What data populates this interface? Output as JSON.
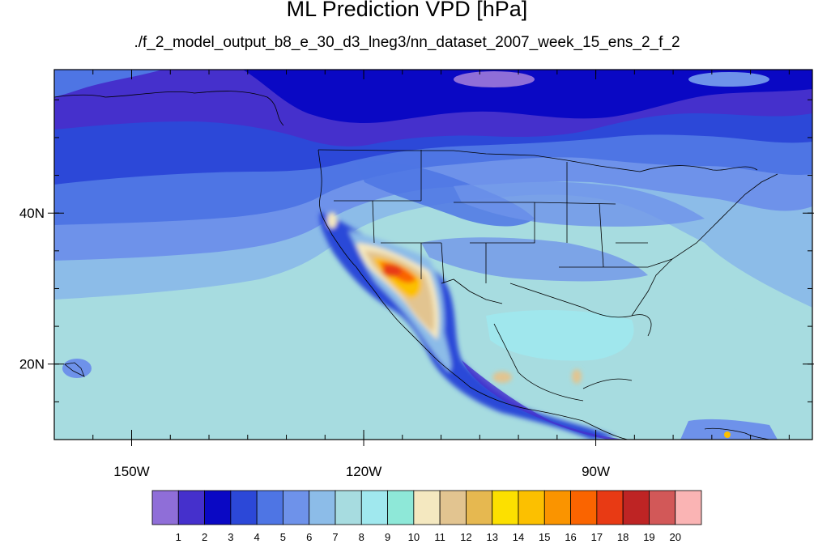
{
  "title": "ML Prediction VPD [hPa]",
  "subtitle": "./f_2_model_output_b8_e_30_d3_lneg3/nn_dataset_2007_week_15_ens_2_f_2",
  "map": {
    "lon_range": [
      -160,
      -62
    ],
    "lat_range": [
      10,
      59
    ],
    "lat_ticks": [
      {
        "value": 40,
        "label": "40N"
      },
      {
        "value": 20,
        "label": "20N"
      }
    ],
    "lon_ticks": [
      {
        "value": -150,
        "label": "150W"
      },
      {
        "value": -120,
        "label": "120W"
      },
      {
        "value": -90,
        "label": "90W"
      }
    ],
    "background_level_color": "#a7dce0"
  },
  "colorbar": {
    "colors": [
      "#8f6ed8",
      "#4530cc",
      "#0a08c4",
      "#2c48d8",
      "#4e75e4",
      "#6e92ea",
      "#8cbce8",
      "#a7dce0",
      "#a0e8ee",
      "#8ee8d8",
      "#f4e8c0",
      "#e2c490",
      "#e6b850",
      "#fce000",
      "#fcc000",
      "#fa9400",
      "#fa6400",
      "#e83a14",
      "#be2424",
      "#d25858",
      "#fab4b4"
    ],
    "labels": [
      "1",
      "2",
      "3",
      "4",
      "5",
      "6",
      "7",
      "8",
      "9",
      "10",
      "11",
      "12",
      "13",
      "14",
      "15",
      "16",
      "17",
      "18",
      "19",
      "20"
    ]
  }
}
